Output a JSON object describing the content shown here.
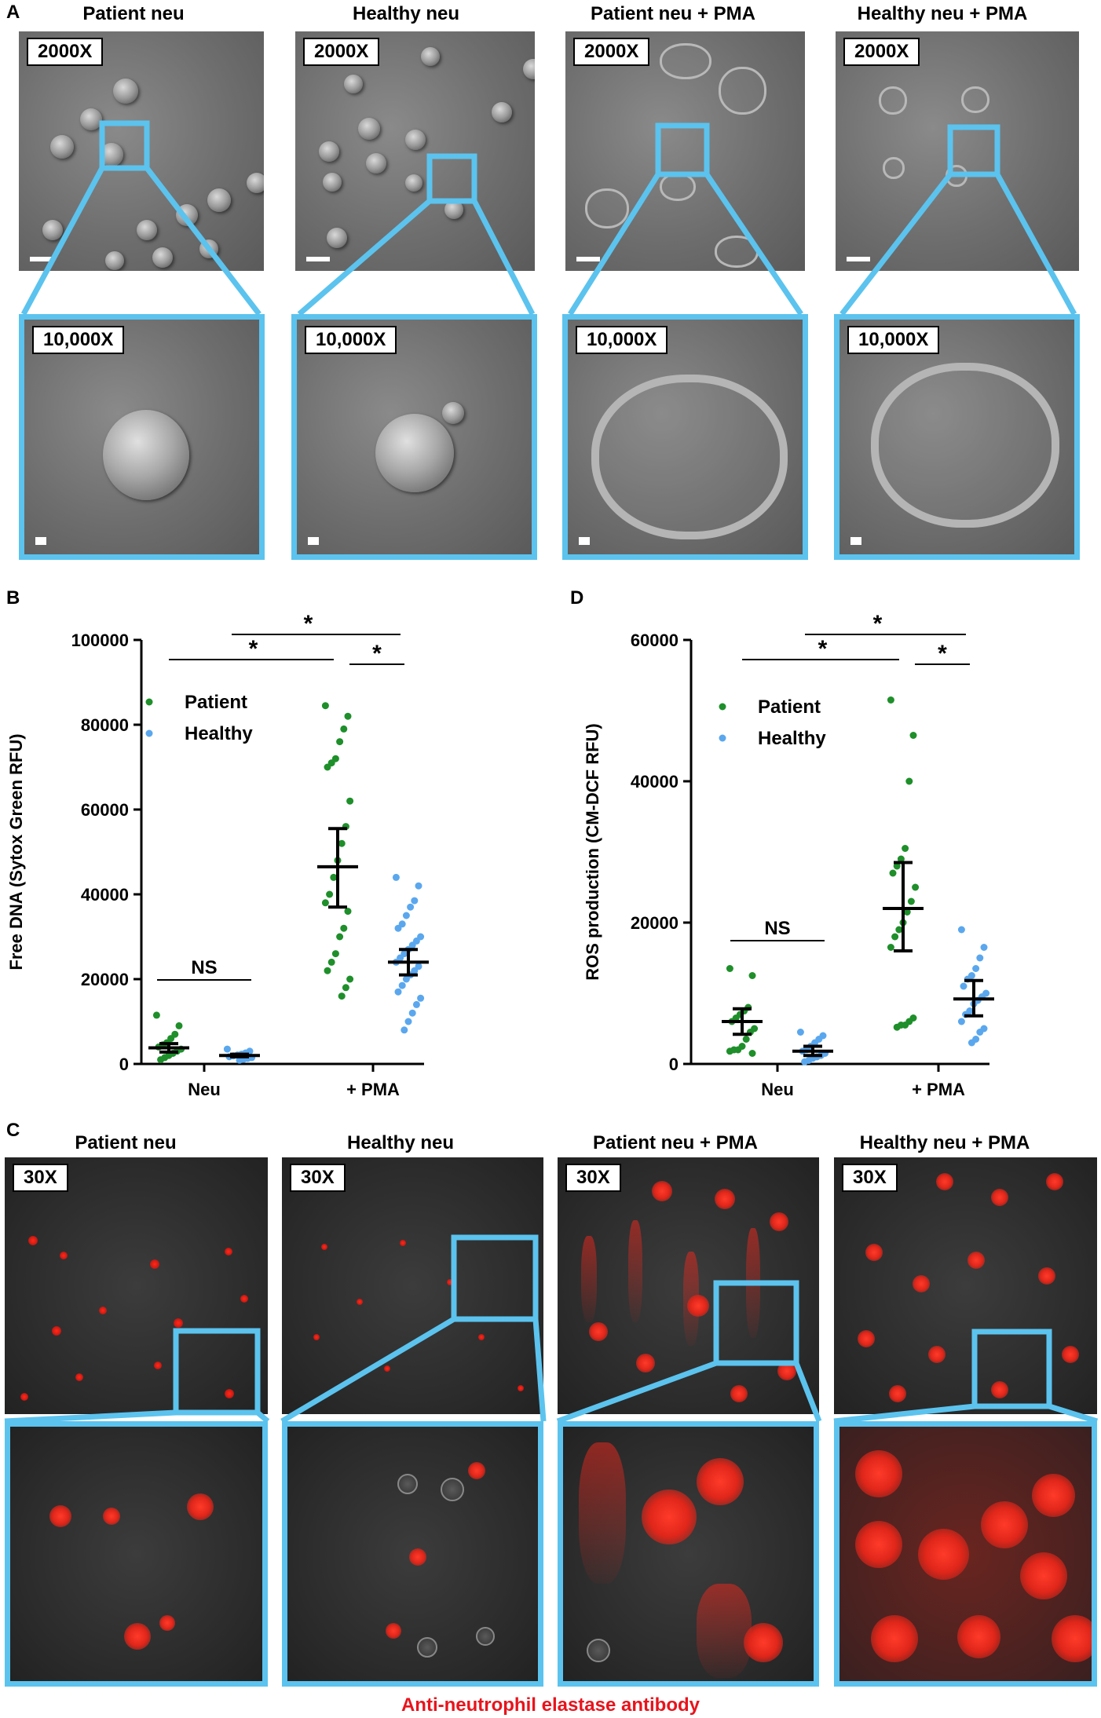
{
  "panel_a": {
    "label": "A",
    "columns": [
      {
        "title": "Patient neu",
        "mag_low": "2000X",
        "mag_high": "10,000X"
      },
      {
        "title": "Healthy neu",
        "mag_low": "2000X",
        "mag_high": "10,000X"
      },
      {
        "title": "Patient neu + PMA",
        "mag_low": "2000X",
        "mag_high": "10,000X"
      },
      {
        "title": "Healthy neu + PMA",
        "mag_low": "2000X",
        "mag_high": "10,000X"
      }
    ]
  },
  "panel_c": {
    "label": "C",
    "columns": [
      {
        "title": "Patient neu",
        "mag": "30X"
      },
      {
        "title": "Healthy neu",
        "mag": "30X"
      },
      {
        "title": "Patient neu + PMA",
        "mag": "30X"
      },
      {
        "title": "Healthy neu + PMA",
        "mag": "30X"
      }
    ],
    "footer": "Anti-neutrophil elastase antibody",
    "footer_color": "#e8141c"
  },
  "colors": {
    "patient": "#1e8f2a",
    "healthy": "#5aa7ee",
    "zoom_border": "#5bc3ee",
    "mean_bar": "#000000"
  },
  "chart_data": [
    {
      "panel": "B",
      "type": "scatter",
      "ylabel": "Free DNA (Sytox Green RFU)",
      "categories": [
        "Neu",
        "+ PMA"
      ],
      "ylim": [
        0,
        100000
      ],
      "yticks": [
        "0",
        "20000",
        "40000",
        "60000",
        "80000",
        "100000"
      ],
      "legend": [
        "Patient",
        "Healthy"
      ],
      "series": [
        {
          "name": "Patient",
          "group": "Neu",
          "mean": 3800,
          "sem_low": 2800,
          "sem_high": 4800,
          "values": [
            11500,
            9000,
            7000,
            6000,
            5000,
            4500,
            4000,
            3500,
            3000,
            2500,
            2000,
            1500,
            1000
          ]
        },
        {
          "name": "Healthy",
          "group": "Neu",
          "mean": 2000,
          "sem_low": 1700,
          "sem_high": 2300,
          "values": [
            3500,
            3000,
            2600,
            2300,
            2100,
            1900,
            1700,
            1500,
            1300,
            1100,
            900
          ]
        },
        {
          "name": "Patient",
          "group": "+ PMA",
          "mean": 46500,
          "sem_low": 37000,
          "sem_high": 55500,
          "values": [
            84500,
            82000,
            79000,
            76000,
            72000,
            71000,
            70000,
            62000,
            56000,
            52000,
            48000,
            44000,
            40000,
            38000,
            36000,
            32000,
            30000,
            26000,
            24000,
            22000,
            20000,
            18000,
            16000
          ]
        },
        {
          "name": "Healthy",
          "group": "+ PMA",
          "mean": 24000,
          "sem_low": 21000,
          "sem_high": 27000,
          "values": [
            44000,
            42000,
            38500,
            37000,
            35000,
            33000,
            32000,
            30000,
            29000,
            28000,
            27000,
            26000,
            25000,
            24000,
            23000,
            22000,
            21000,
            20000,
            18500,
            17000,
            15500,
            14000,
            12000,
            10000,
            8000
          ]
        }
      ],
      "annotations": [
        {
          "text": "NS",
          "from": 0,
          "to": 0,
          "type": "within"
        },
        {
          "text": "*",
          "from": 0,
          "to": 1,
          "type": "patient"
        },
        {
          "text": "*",
          "from": 0,
          "to": 1,
          "type": "healthy"
        },
        {
          "text": "*",
          "from": 1,
          "to": 1,
          "type": "within"
        }
      ]
    },
    {
      "panel": "D",
      "type": "scatter",
      "ylabel": "ROS production (CM-DCF RFU)",
      "categories": [
        "Neu",
        "+ PMA"
      ],
      "ylim": [
        0,
        60000
      ],
      "yticks": [
        "0",
        "20000",
        "40000",
        "60000"
      ],
      "legend": [
        "Patient",
        "Healthy"
      ],
      "series": [
        {
          "name": "Patient",
          "group": "Neu",
          "mean": 6000,
          "sem_low": 4200,
          "sem_high": 7800,
          "values": [
            13500,
            12500,
            8000,
            7500,
            7000,
            6500,
            6000,
            5000,
            4500,
            3500,
            2500,
            2000,
            2000,
            1800,
            1500
          ]
        },
        {
          "name": "Healthy",
          "group": "Neu",
          "mean": 1800,
          "sem_low": 1200,
          "sem_high": 2500,
          "values": [
            4500,
            4000,
            3500,
            3000,
            2500,
            2000,
            1800,
            1500,
            1200,
            1000,
            800,
            500,
            300
          ]
        },
        {
          "name": "Patient",
          "group": "+ PMA",
          "mean": 22000,
          "sem_low": 16000,
          "sem_high": 28500,
          "values": [
            51500,
            46500,
            40000,
            30500,
            29000,
            28000,
            27000,
            25000,
            23000,
            21500,
            20000,
            19000,
            18000,
            16500,
            6500,
            6000,
            5500,
            5500,
            5200
          ]
        },
        {
          "name": "Healthy",
          "group": "+ PMA",
          "mean": 9200,
          "sem_low": 6800,
          "sem_high": 11800,
          "values": [
            19000,
            16500,
            15000,
            13500,
            12500,
            12000,
            11000,
            10000,
            9500,
            9000,
            8500,
            7500,
            7000,
            6000,
            5000,
            4500,
            3500,
            3000
          ]
        }
      ],
      "annotations": [
        {
          "text": "NS",
          "from": 0,
          "to": 0,
          "type": "within"
        },
        {
          "text": "*",
          "from": 0,
          "to": 1,
          "type": "patient"
        },
        {
          "text": "*",
          "from": 0,
          "to": 1,
          "type": "healthy"
        },
        {
          "text": "*",
          "from": 1,
          "to": 1,
          "type": "within"
        }
      ]
    }
  ]
}
